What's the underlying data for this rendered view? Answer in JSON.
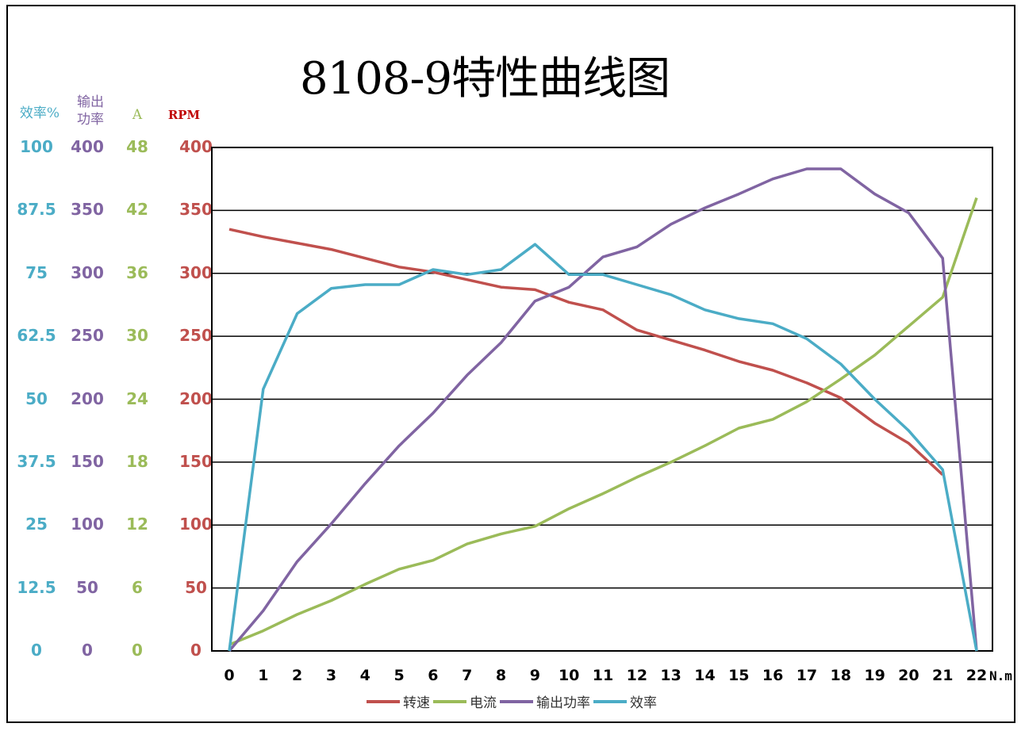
{
  "chart_data": {
    "type": "line",
    "title": "8108-9特性曲线图",
    "x": [
      0,
      1,
      2,
      3,
      4,
      5,
      6,
      7,
      8,
      9,
      10,
      11,
      12,
      13,
      14,
      15,
      16,
      17,
      18,
      19,
      20,
      21,
      22
    ],
    "x_tick_labels": [
      "0",
      "1",
      "2",
      "3",
      "4",
      "5",
      "6",
      "7",
      "8",
      "9",
      "10",
      "11",
      "12",
      "13",
      "14",
      "15",
      "16",
      "17",
      "18",
      "19",
      "20",
      "21",
      "22"
    ],
    "x_unit": "N.m",
    "axes": [
      {
        "id": "eff",
        "label": "效率%",
        "color": "#4BACC6",
        "ylim": [
          0,
          100
        ],
        "ticks": [
          "100",
          "87.5",
          "75",
          "62.5",
          "50",
          "37.5",
          "25",
          "12.5",
          "0"
        ]
      },
      {
        "id": "power",
        "label_line1": "输出",
        "label_line2": "功率",
        "color": "#8064A2",
        "ylim": [
          0,
          400
        ],
        "ticks": [
          "400",
          "350",
          "300",
          "250",
          "200",
          "150",
          "100",
          "50",
          "0"
        ]
      },
      {
        "id": "current",
        "label": "A",
        "color": "#9BBB59",
        "ylim": [
          0,
          48
        ],
        "ticks": [
          "48",
          "42",
          "36",
          "30",
          "24",
          "18",
          "12",
          "6",
          "0"
        ]
      },
      {
        "id": "rpm",
        "label": "RPM",
        "color": "#C0504D",
        "ylim": [
          0,
          400
        ],
        "ticks": [
          "400",
          "350",
          "300",
          "250",
          "200",
          "150",
          "100",
          "50",
          "0"
        ]
      }
    ],
    "grid": true,
    "legend_position": "bottom",
    "series": [
      {
        "name": "转速",
        "axis": "rpm",
        "color": "#C0504D",
        "values": [
          335,
          329,
          324,
          319,
          312,
          305,
          301,
          295,
          289,
          287,
          277,
          271,
          255,
          247,
          239,
          230,
          223,
          213,
          201,
          181,
          165,
          140,
          null
        ]
      },
      {
        "name": "电流",
        "axis": "rpm",
        "color": "#9BBB59",
        "values": [
          5,
          16,
          29,
          40,
          53,
          65,
          72,
          85,
          93,
          99,
          113,
          125,
          138,
          150,
          163,
          177,
          184,
          198,
          216,
          235,
          258,
          281,
          360
        ]
      },
      {
        "name": "输出功率",
        "axis": "rpm",
        "color": "#8064A2",
        "values": [
          0,
          32,
          71,
          101,
          133,
          163,
          189,
          219,
          245,
          278,
          289,
          313,
          321,
          339,
          352,
          363,
          375,
          383,
          383,
          363,
          348,
          312,
          0
        ]
      },
      {
        "name": "效率",
        "axis": "rpm",
        "color": "#4BACC6",
        "values": [
          0,
          208,
          268,
          288,
          291,
          291,
          303,
          299,
          303,
          323,
          299,
          299,
          291,
          283,
          271,
          264,
          260,
          248,
          228,
          200,
          175,
          144,
          0
        ]
      }
    ]
  }
}
